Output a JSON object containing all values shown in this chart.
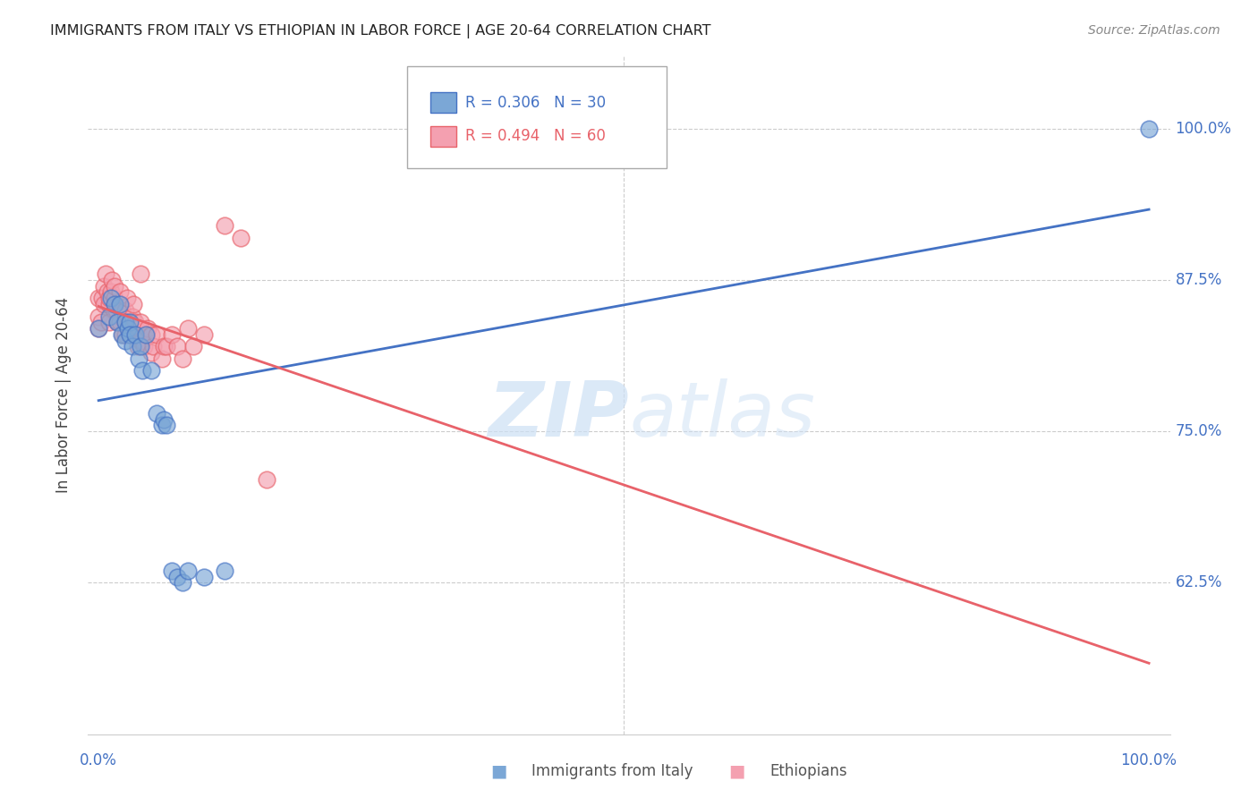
{
  "title": "IMMIGRANTS FROM ITALY VS ETHIOPIAN IN LABOR FORCE | AGE 20-64 CORRELATION CHART",
  "source": "Source: ZipAtlas.com",
  "ylabel": "In Labor Force | Age 20-64",
  "watermark_zip": "ZIP",
  "watermark_atlas": "atlas",
  "legend_R1": "R = 0.306",
  "legend_N1": "N = 30",
  "legend_R2": "R = 0.494",
  "legend_N2": "N = 60",
  "legend_label1": "Immigrants from Italy",
  "legend_label2": "Ethiopians",
  "color_italy": "#7BA7D6",
  "color_ethiopian": "#F4A0B0",
  "color_italy_line": "#4472C4",
  "color_ethiopian_line": "#E8626A",
  "color_axis_labels": "#4472C4",
  "italy_x": [
    0.0,
    0.01,
    0.012,
    0.015,
    0.018,
    0.02,
    0.022,
    0.025,
    0.025,
    0.028,
    0.03,
    0.03,
    0.032,
    0.035,
    0.038,
    0.04,
    0.042,
    0.045,
    0.05,
    0.055,
    0.06,
    0.062,
    0.065,
    0.07,
    0.075,
    0.08,
    0.085,
    0.1,
    0.12,
    1.0
  ],
  "italy_y": [
    0.835,
    0.845,
    0.86,
    0.855,
    0.84,
    0.855,
    0.83,
    0.84,
    0.825,
    0.835,
    0.84,
    0.83,
    0.82,
    0.83,
    0.81,
    0.82,
    0.8,
    0.83,
    0.8,
    0.765,
    0.755,
    0.76,
    0.755,
    0.635,
    0.63,
    0.625,
    0.635,
    0.63,
    0.635,
    1.0
  ],
  "ethiopian_x": [
    0.0,
    0.0,
    0.0,
    0.002,
    0.003,
    0.005,
    0.005,
    0.007,
    0.008,
    0.01,
    0.01,
    0.01,
    0.012,
    0.013,
    0.015,
    0.015,
    0.015,
    0.017,
    0.018,
    0.02,
    0.02,
    0.02,
    0.022,
    0.023,
    0.025,
    0.025,
    0.025,
    0.027,
    0.028,
    0.03,
    0.03,
    0.032,
    0.033,
    0.035,
    0.035,
    0.037,
    0.038,
    0.04,
    0.04,
    0.04,
    0.042,
    0.043,
    0.045,
    0.047,
    0.05,
    0.05,
    0.052,
    0.055,
    0.06,
    0.062,
    0.065,
    0.07,
    0.075,
    0.08,
    0.085,
    0.09,
    0.1,
    0.12,
    0.135,
    0.16
  ],
  "ethiopian_y": [
    0.835,
    0.845,
    0.86,
    0.84,
    0.86,
    0.855,
    0.87,
    0.88,
    0.865,
    0.855,
    0.84,
    0.86,
    0.865,
    0.875,
    0.85,
    0.86,
    0.87,
    0.85,
    0.84,
    0.855,
    0.865,
    0.84,
    0.85,
    0.83,
    0.85,
    0.84,
    0.83,
    0.86,
    0.84,
    0.84,
    0.83,
    0.845,
    0.855,
    0.83,
    0.84,
    0.82,
    0.835,
    0.825,
    0.84,
    0.88,
    0.825,
    0.82,
    0.83,
    0.835,
    0.83,
    0.815,
    0.82,
    0.83,
    0.81,
    0.82,
    0.82,
    0.83,
    0.82,
    0.81,
    0.835,
    0.82,
    0.83,
    0.92,
    0.91,
    0.71
  ],
  "xlim": [
    -0.01,
    1.02
  ],
  "ylim": [
    0.5,
    1.06
  ],
  "yticks": [
    0.625,
    0.75,
    0.875,
    1.0
  ],
  "ytick_labels": [
    "62.5%",
    "75.0%",
    "87.5%",
    "100.0%"
  ]
}
